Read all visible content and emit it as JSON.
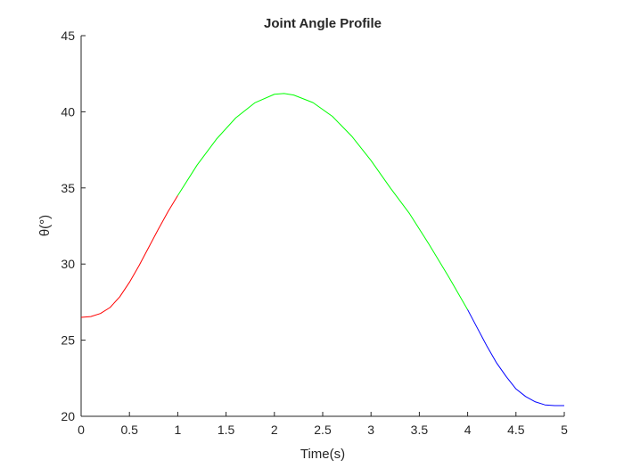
{
  "chart_data": {
    "type": "line",
    "title": "Joint Angle Profile",
    "xlabel": "Time(s)",
    "ylabel": "θ(°)",
    "xlim": [
      0,
      5
    ],
    "ylim": [
      20,
      45
    ],
    "xticks": [
      0,
      0.5,
      1,
      1.5,
      2,
      2.5,
      3,
      3.5,
      4,
      4.5,
      5
    ],
    "yticks": [
      20,
      25,
      30,
      35,
      40,
      45
    ],
    "xtick_labels": [
      "0",
      "0.5",
      "1",
      "1.5",
      "2",
      "2.5",
      "3",
      "3.5",
      "4",
      "4.5",
      "5"
    ],
    "ytick_labels": [
      "20",
      "25",
      "30",
      "35",
      "40",
      "45"
    ],
    "grid": false,
    "series": [
      {
        "color": "#ff0000",
        "x": [
          0,
          0.1,
          0.2,
          0.3,
          0.4,
          0.5,
          0.6,
          0.7,
          0.8,
          0.9,
          1.0
        ],
        "y": [
          26.5,
          26.55,
          26.75,
          27.15,
          27.85,
          28.8,
          29.9,
          31.1,
          32.3,
          33.45,
          34.5
        ]
      },
      {
        "color": "#00ff00",
        "x": [
          1.0,
          1.2,
          1.4,
          1.6,
          1.8,
          2.0,
          2.1,
          2.2,
          2.4,
          2.6,
          2.8,
          3.0,
          3.2,
          3.4,
          3.6,
          3.8,
          4.0
        ],
        "y": [
          34.5,
          36.5,
          38.2,
          39.6,
          40.6,
          41.15,
          41.2,
          41.1,
          40.6,
          39.7,
          38.4,
          36.8,
          35.0,
          33.3,
          31.3,
          29.2,
          27.0
        ]
      },
      {
        "color": "#0000ff",
        "x": [
          4.0,
          4.1,
          4.2,
          4.3,
          4.4,
          4.5,
          4.6,
          4.7,
          4.8,
          4.9,
          5.0
        ],
        "y": [
          27.0,
          25.8,
          24.6,
          23.5,
          22.6,
          21.8,
          21.3,
          20.95,
          20.75,
          20.7,
          20.7
        ]
      }
    ]
  }
}
